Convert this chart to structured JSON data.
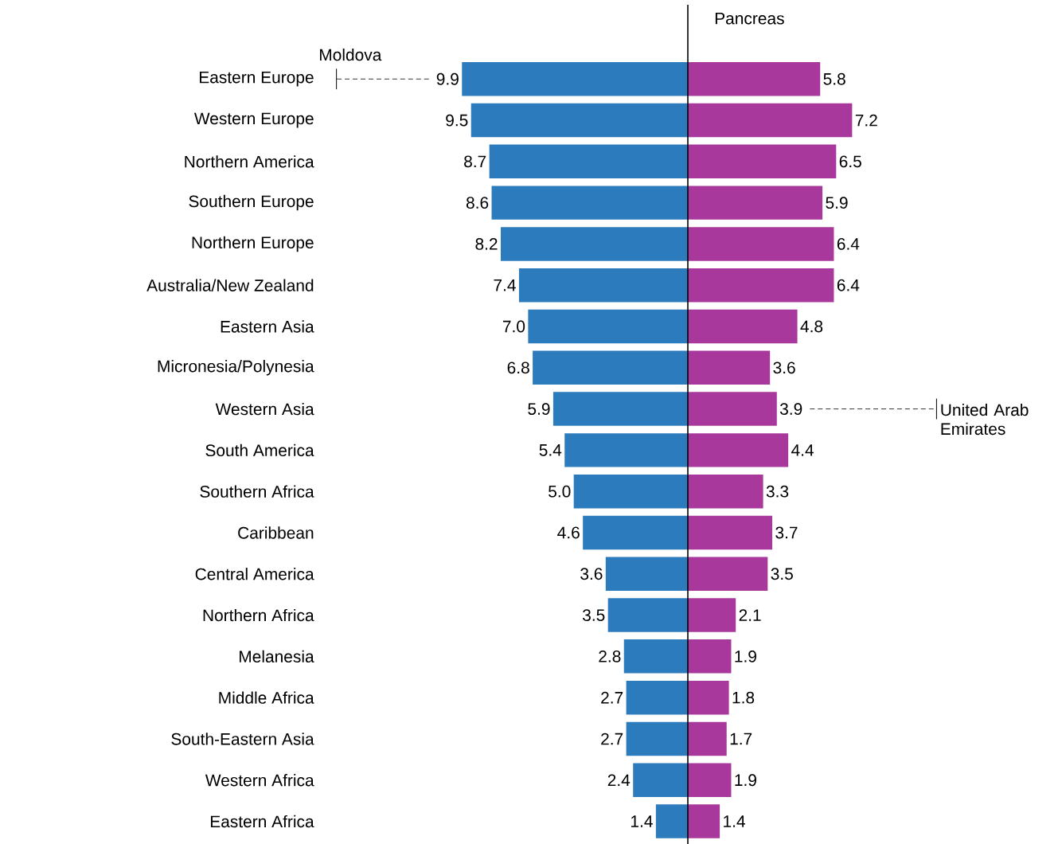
{
  "chart_data": [
    {
      "type": "bar",
      "orientation": "horizontal",
      "tick_labels": "y",
      "categories": [
        "Eastern Europe",
        "Western Europe",
        "Northern America",
        "Southern Europe",
        "Northern Europe",
        "Australia/New Zealand",
        "Eastern Asia",
        "Micronesia/Polynesia",
        "Western Asia",
        "South America",
        "Southern Africa",
        "Caribbean",
        "Central America",
        "Northern Africa",
        "Melanesia",
        "Middle Africa",
        "South-Eastern Asia",
        "Western Africa",
        "Eastern Africa"
      ],
      "series": [
        {
          "color": "#2b7bbd",
          "values": [
            9.9,
            9.5,
            8.7,
            8.6,
            8.2,
            7.4,
            7.0,
            6.8,
            5.9,
            5.4,
            5.0,
            4.6,
            3.6,
            3.5,
            2.8,
            2.7,
            2.7,
            2.4,
            1.4
          ],
          "value_labels": [
            "9.9",
            "9.5",
            "8.7",
            "8.6",
            "8.2",
            "7.4",
            "7.0",
            "6.8",
            "5.9",
            "5.4",
            "5.0",
            "4.6",
            "3.6",
            "3.5",
            "2.8",
            "2.7",
            "2.7",
            "2.4",
            "1.4"
          ]
        }
      ],
      "annotations": [
        "Moldova"
      ]
    },
    {
      "type": "bar",
      "orientation": "horizontal",
      "title": "Pancreas",
      "tick_labels": false,
      "categories": [
        null,
        null,
        null,
        null,
        null,
        null,
        null,
        null,
        null,
        null,
        null,
        null,
        null,
        null,
        null,
        null,
        null,
        null,
        null
      ],
      "series": [
        {
          "color": "#a8389b",
          "values": [
            5.8,
            7.2,
            6.5,
            5.9,
            6.4,
            6.4,
            4.8,
            3.6,
            3.9,
            4.4,
            3.3,
            3.7,
            3.5,
            2.1,
            1.9,
            1.8,
            1.7,
            1.9,
            1.4
          ],
          "value_labels": [
            "5.8",
            "7.2",
            "6.5",
            "5.9",
            "6.4",
            "6.4",
            "4.8",
            "3.6",
            "3.9",
            "4.4",
            "3.3",
            "3.7",
            "3.5",
            "2.1",
            "1.9",
            "1.8",
            "1.7",
            "1.9",
            "1.4"
          ]
        }
      ],
      "annotations": [
        "United Arab Emirates"
      ]
    }
  ]
}
